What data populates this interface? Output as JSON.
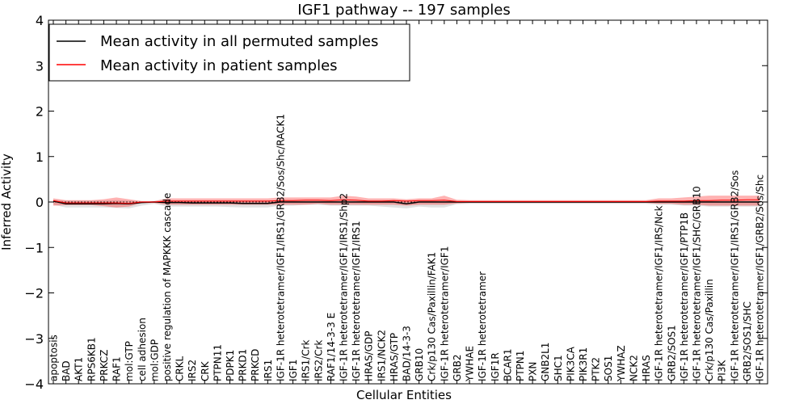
{
  "chart_data": {
    "type": "line",
    "title": "IGF1 pathway -- 197 samples",
    "xlabel": "Cellular Entities",
    "ylabel": "Inferred Activity",
    "ylim": [
      -4,
      4
    ],
    "yticks": [
      -4,
      -3,
      -2,
      -1,
      0,
      1,
      2,
      3,
      4
    ],
    "legend_position": "top-left",
    "colors": {
      "permuted": "#000000",
      "patient": "#ff0000",
      "patient_band": "#ff0000",
      "permuted_band": "#aaaaaa"
    },
    "categories": [
      "apoptosis",
      "BAD",
      "AKT1",
      "RPS6KB1",
      "PRKCZ",
      "RAF1",
      "mol:GTP",
      "cell adhesion",
      "mol:GDP",
      "positive regulation of MAPKKK cascade",
      "CRKL",
      "IRS2",
      "CRK",
      "PTPN11",
      "PDPK1",
      "PRKD1",
      "PRKCD",
      "IRS1",
      "IGF-1R heterotetramer/IGF1/IRS1/GRB2/Sos/Shc/RACK1",
      "IGF1",
      "IRS1/Crk",
      "IRS2/Crk",
      "RAF1/14-3-3 E",
      "IGF-1R heterotetramer/IGF1/IRS1/Shp2",
      "IGF-1R heterotetramer/IGF1/IRS1",
      "HRAS/GDP",
      "IRS1/NCK2",
      "HRAS/GTP",
      "BAD/14-3-3",
      "GRB10",
      "Crk/p130 Cas/Paxillin/FAK1",
      "IGF-1R heterotetramer/IGF1",
      "GRB2",
      "YWHAE",
      "IGF-1R heterotetramer",
      "IGF1R",
      "BCAR1",
      "PTPN1",
      "PXN",
      "GNB2L1",
      "SHC1",
      "PIK3CA",
      "PIK3R1",
      "PTK2",
      "SOS1",
      "YWHAZ",
      "NCK2",
      "HRAS",
      "IGF-1R heterotetramer/IGF1/IRS/Nck",
      "GRB2/SOS1",
      "IGF-1R heterotetramer/IGF1/PTP1B",
      "IGF-1R heterotetramer/IGF1/SHC/GRB10",
      "Crk/p130 Cas/Paxillin",
      "PI3K",
      "IGF-1R heterotetramer/IGF1/IRS1/GRB2/Sos",
      "GRB2/SOS1/SHC",
      "IGF-1R heterotetramer/IGF1/GRB2/Sos/Shc"
    ],
    "series": [
      {
        "name": "Mean activity in all permuted samples",
        "values": [
          0.02,
          -0.04,
          -0.04,
          -0.04,
          -0.04,
          -0.03,
          -0.04,
          -0.01,
          0,
          -0.01,
          -0.01,
          -0.02,
          -0.02,
          -0.02,
          -0.02,
          -0.03,
          -0.03,
          -0.03,
          0,
          0,
          0,
          0,
          0,
          0,
          0,
          0,
          0,
          0,
          -0.04,
          0,
          0,
          0,
          0,
          0,
          0,
          0,
          0,
          0,
          0,
          0,
          0,
          0,
          0,
          0,
          0,
          0,
          0,
          0,
          0,
          0,
          0,
          0,
          0,
          0,
          0,
          0,
          0
        ]
      },
      {
        "name": "Mean activity in patient samples",
        "values": [
          0.03,
          -0.02,
          -0.02,
          -0.02,
          -0.02,
          -0.02,
          -0.03,
          0,
          0,
          0.02,
          0.02,
          0.02,
          0.02,
          0.02,
          0.02,
          0.02,
          0.02,
          0.02,
          0.03,
          0.03,
          0.04,
          0.04,
          0.03,
          0.05,
          0.04,
          0.02,
          0.02,
          0.03,
          0.02,
          0.03,
          0.03,
          0.04,
          0.01,
          0.01,
          0.01,
          0.01,
          0.01,
          0.01,
          0.01,
          0.01,
          0.01,
          0.01,
          0.01,
          0.01,
          0.01,
          0.01,
          0.01,
          0.01,
          0.02,
          0.02,
          0.02,
          0.03,
          0.03,
          0.04,
          0.04,
          0.05,
          0.05
        ]
      }
    ],
    "patient_band": {
      "upper": [
        0.08,
        0.04,
        0.04,
        0.04,
        0.06,
        0.1,
        0.06,
        0.02,
        0.02,
        0.08,
        0.08,
        0.08,
        0.08,
        0.08,
        0.08,
        0.08,
        0.08,
        0.08,
        0.1,
        0.1,
        0.1,
        0.1,
        0.1,
        0.14,
        0.12,
        0.08,
        0.08,
        0.08,
        0.06,
        0.08,
        0.08,
        0.14,
        0.05,
        0.04,
        0.04,
        0.04,
        0.04,
        0.04,
        0.04,
        0.04,
        0.04,
        0.04,
        0.04,
        0.04,
        0.04,
        0.04,
        0.04,
        0.04,
        0.08,
        0.08,
        0.1,
        0.12,
        0.14,
        0.14,
        0.14,
        0.14,
        0.14
      ],
      "lower": [
        -0.08,
        -0.07,
        -0.07,
        -0.07,
        -0.09,
        -0.12,
        -0.1,
        -0.02,
        -0.02,
        -0.06,
        -0.06,
        -0.06,
        -0.06,
        -0.06,
        -0.06,
        -0.06,
        -0.06,
        -0.06,
        -0.06,
        -0.06,
        -0.06,
        -0.04,
        -0.06,
        -0.06,
        -0.06,
        -0.06,
        -0.06,
        -0.06,
        -0.08,
        -0.06,
        -0.06,
        -0.06,
        -0.03,
        -0.02,
        -0.02,
        -0.02,
        -0.02,
        -0.02,
        -0.02,
        -0.02,
        -0.02,
        -0.02,
        -0.02,
        -0.02,
        -0.02,
        -0.02,
        -0.02,
        -0.02,
        -0.04,
        -0.04,
        -0.06,
        -0.06,
        -0.08,
        -0.08,
        -0.08,
        -0.08,
        -0.08
      ]
    },
    "permuted_band": {
      "upper": [
        0.05,
        0.03,
        0.03,
        0.03,
        0.03,
        0.04,
        0.03,
        0.02,
        0.02,
        0.03,
        0.03,
        0.03,
        0.03,
        0.03,
        0.03,
        0.03,
        0.03,
        0.03,
        0.04,
        0.04,
        0.04,
        0.04,
        0.04,
        0.04,
        0.04,
        0.04,
        0.04,
        0.04,
        0.03,
        0.03,
        0.03,
        0.03,
        0.02,
        0.02,
        0.02,
        0.02,
        0.02,
        0.02,
        0.02,
        0.02,
        0.02,
        0.02,
        0.02,
        0.02,
        0.02,
        0.02,
        0.02,
        0.02,
        0.03,
        0.03,
        0.03,
        0.03,
        0.03,
        0.03,
        0.03,
        0.03,
        0.03
      ],
      "lower": [
        -0.06,
        -0.12,
        -0.12,
        -0.12,
        -0.12,
        -0.13,
        -0.14,
        -0.08,
        -0.04,
        -0.1,
        -0.1,
        -0.1,
        -0.1,
        -0.1,
        -0.11,
        -0.12,
        -0.12,
        -0.12,
        -0.08,
        -0.08,
        -0.06,
        -0.06,
        -0.08,
        -0.08,
        -0.08,
        -0.08,
        -0.1,
        -0.12,
        -0.14,
        -0.1,
        -0.12,
        -0.12,
        -0.05,
        -0.04,
        -0.04,
        -0.04,
        -0.04,
        -0.04,
        -0.04,
        -0.04,
        -0.04,
        -0.04,
        -0.04,
        -0.04,
        -0.04,
        -0.04,
        -0.04,
        -0.04,
        -0.06,
        -0.06,
        -0.08,
        -0.08,
        -0.1,
        -0.1,
        -0.1,
        -0.1,
        -0.1
      ]
    }
  }
}
